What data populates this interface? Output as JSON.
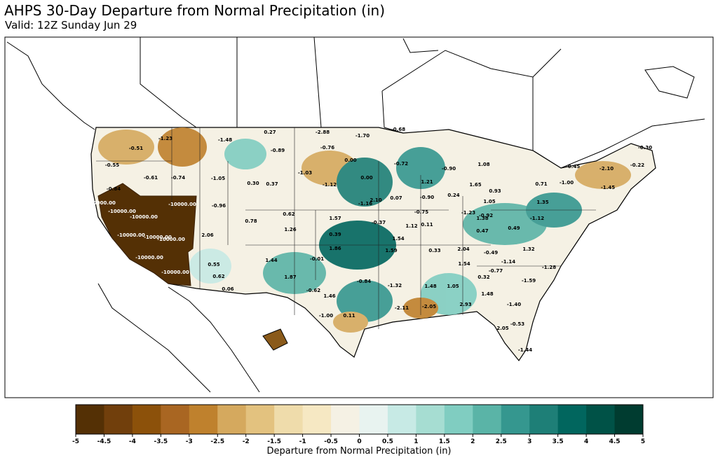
{
  "title": "AHPS 30-Day Departure from Normal Precipitation (in)",
  "subtitle": "Valid: 12Z Sunday Jun 29",
  "colorbar": {
    "label": "Departure from Normal Precipitation (in)",
    "ticks": [
      "-5",
      "-4.5",
      "-4",
      "-3.5",
      "-3",
      "-2.5",
      "-2",
      "-1.5",
      "-1",
      "-0.5",
      "0",
      "0.5",
      "1",
      "1.5",
      "2",
      "2.5",
      "3",
      "3.5",
      "4",
      "4.5",
      "5"
    ],
    "colors": [
      "#543005",
      "#713f0c",
      "#8c510a",
      "#a96622",
      "#bf812d",
      "#d5a95e",
      "#e3c27f",
      "#efdcab",
      "#f6e8c3",
      "#f5f1e4",
      "#e8f3f0",
      "#c7eae5",
      "#a6ddd2",
      "#80cdc1",
      "#5ab4a7",
      "#35978f",
      "#1e7f77",
      "#01665e",
      "#005247",
      "#003c30"
    ]
  },
  "map": {
    "background": "#ffffff",
    "land_fill": "#f5f1e4",
    "dry_core": "#543005",
    "values": [
      {
        "text": "-1.23",
        "w": false
      },
      {
        "text": "-0.51",
        "w": false
      },
      {
        "text": "-0.55",
        "w": false
      },
      {
        "text": "-0.61",
        "w": false
      },
      {
        "text": "-0.74",
        "w": false
      },
      {
        "text": "-1.48",
        "w": false
      },
      {
        "text": "0.27",
        "w": false
      },
      {
        "text": "-0.89",
        "w": false
      },
      {
        "text": "-2.88",
        "w": false
      },
      {
        "text": "-0.76",
        "w": false
      },
      {
        "text": "-1.70",
        "w": false
      },
      {
        "text": "-0.68",
        "w": false
      },
      {
        "text": "-0.84",
        "w": false
      },
      {
        "text": "-1.05",
        "w": false
      },
      {
        "text": "0.30",
        "w": false
      },
      {
        "text": "0.37",
        "w": false
      },
      {
        "text": "-1.03",
        "w": false
      },
      {
        "text": "-1.12",
        "w": false
      },
      {
        "text": "0.00",
        "w": false
      },
      {
        "text": "0.00",
        "w": false
      },
      {
        "text": "-0.96",
        "w": false
      },
      {
        "text": "0.62",
        "w": false
      },
      {
        "text": "0.78",
        "w": false
      },
      {
        "text": "1.26",
        "w": false
      },
      {
        "text": "1.57",
        "w": false
      },
      {
        "text": "0.39",
        "w": false
      },
      {
        "text": "-1.16",
        "w": false
      },
      {
        "text": "-0.37",
        "w": false
      },
      {
        "text": "2.10",
        "w": false
      },
      {
        "text": "0.07",
        "w": false
      },
      {
        "text": "2.06",
        "w": false
      },
      {
        "text": "0.55",
        "w": false
      },
      {
        "text": "0.62",
        "w": false
      },
      {
        "text": "0.06",
        "w": false
      },
      {
        "text": "1.44",
        "w": false
      },
      {
        "text": "-0.01",
        "w": false
      },
      {
        "text": "1.86",
        "w": false
      },
      {
        "text": "1.87",
        "w": false
      },
      {
        "text": "-0.62",
        "w": false
      },
      {
        "text": "1.46",
        "w": false
      },
      {
        "text": "-1.00",
        "w": false
      },
      {
        "text": "0.11",
        "w": false
      },
      {
        "text": "-0.84",
        "w": false
      },
      {
        "text": "-1.32",
        "w": false
      },
      {
        "text": "-2.11",
        "w": false
      },
      {
        "text": "1.59",
        "w": false
      },
      {
        "text": "1.54",
        "w": false
      },
      {
        "text": "1.12",
        "w": false
      },
      {
        "text": "-0.75",
        "w": false
      },
      {
        "text": "0.11",
        "w": false
      },
      {
        "text": "-0.90",
        "w": false
      },
      {
        "text": "1.21",
        "w": false
      },
      {
        "text": "-0.72",
        "w": false
      },
      {
        "text": "-0.90",
        "w": false
      },
      {
        "text": "1.08",
        "w": false
      },
      {
        "text": "1.65",
        "w": false
      },
      {
        "text": "0.93",
        "w": false
      },
      {
        "text": "0.24",
        "w": false
      },
      {
        "text": "-1.23",
        "w": false
      },
      {
        "text": "-0.92",
        "w": false
      },
      {
        "text": "1.05",
        "w": false
      },
      {
        "text": "1.38",
        "w": false
      },
      {
        "text": "0.47",
        "w": false
      },
      {
        "text": "0.49",
        "w": false
      },
      {
        "text": "-0.30",
        "w": false
      },
      {
        "text": "-2.10",
        "w": false
      },
      {
        "text": "-0.22",
        "w": false
      },
      {
        "text": "-0.45",
        "w": false
      },
      {
        "text": "-1.00",
        "w": false
      },
      {
        "text": "0.71",
        "w": false
      },
      {
        "text": "-1.45",
        "w": false
      },
      {
        "text": "1.35",
        "w": false
      },
      {
        "text": "-1.12",
        "w": false
      },
      {
        "text": "2.04",
        "w": false
      },
      {
        "text": "-0.49",
        "w": false
      },
      {
        "text": "1.32",
        "w": false
      },
      {
        "text": "-1.14",
        "w": false
      },
      {
        "text": "-1.28",
        "w": false
      },
      {
        "text": "1.54",
        "w": false
      },
      {
        "text": "-0.77",
        "w": false
      },
      {
        "text": "0.32",
        "w": false
      },
      {
        "text": "-1.59",
        "w": false
      },
      {
        "text": "1.48",
        "w": false
      },
      {
        "text": "1.48",
        "w": false
      },
      {
        "text": "2.93",
        "w": false
      },
      {
        "text": "-1.40",
        "w": false
      },
      {
        "text": "-0.53",
        "w": false
      },
      {
        "text": "2.05",
        "w": false
      },
      {
        "text": "-1.44",
        "w": false
      },
      {
        "text": "-2.05",
        "w": false
      },
      {
        "text": "1.05",
        "w": false
      },
      {
        "text": "0.33",
        "w": false
      },
      {
        "text": "-10000.00",
        "w": true
      },
      {
        "text": "-10000.00",
        "w": true
      },
      {
        "text": "-10000.00",
        "w": true
      },
      {
        "text": "-10000.00",
        "w": true
      },
      {
        "text": "-10000.00",
        "w": true
      },
      {
        "text": "-10000.00",
        "w": true
      },
      {
        "text": "-10000.00",
        "w": true
      },
      {
        "text": "-10000.00",
        "w": true
      },
      {
        "text": "-10000.00",
        "w": true
      }
    ]
  }
}
